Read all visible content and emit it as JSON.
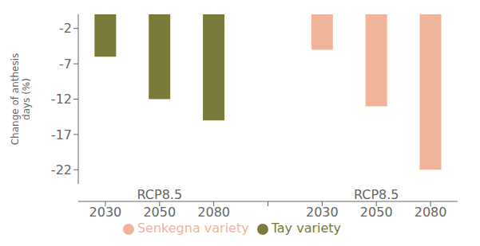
{
  "chart_data": {
    "type": "bar",
    "categories": [
      "2030",
      "2050",
      "2080",
      null,
      "2030",
      "2050",
      "2080"
    ],
    "series": [
      {
        "name": "Tay variety",
        "color": "#7a7a3a",
        "values": [
          -6,
          -12,
          -15,
          null,
          null,
          null,
          null
        ]
      },
      {
        "name": "Senkegna variety",
        "color": "#f0b49a",
        "values": [
          null,
          null,
          null,
          null,
          -5,
          -13,
          -22
        ]
      }
    ],
    "ylabel": "Change of anthesis\ndays (%)",
    "annotations": [
      "RCP8.5",
      "RCP8.5"
    ],
    "ylim": [
      -24,
      0
    ],
    "yticks": [
      -22,
      -17,
      -12,
      -7,
      -2
    ],
    "grid": false,
    "legend": "bottom"
  }
}
